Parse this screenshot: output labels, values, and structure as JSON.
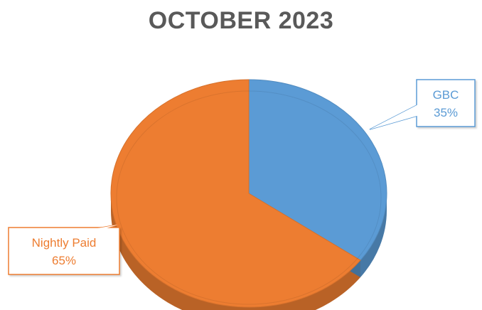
{
  "chart_data": {
    "type": "pie",
    "title": "OCTOBER 2023",
    "slices": [
      {
        "label": "GBC",
        "value": 35,
        "value_label": "35%",
        "color": "#5B9BD5"
      },
      {
        "label": "Nightly Paid",
        "value": 65,
        "value_label": "65%",
        "color": "#ED7D31"
      }
    ],
    "style": "3d-pie",
    "legend": "none",
    "data_labels": "callouts"
  }
}
